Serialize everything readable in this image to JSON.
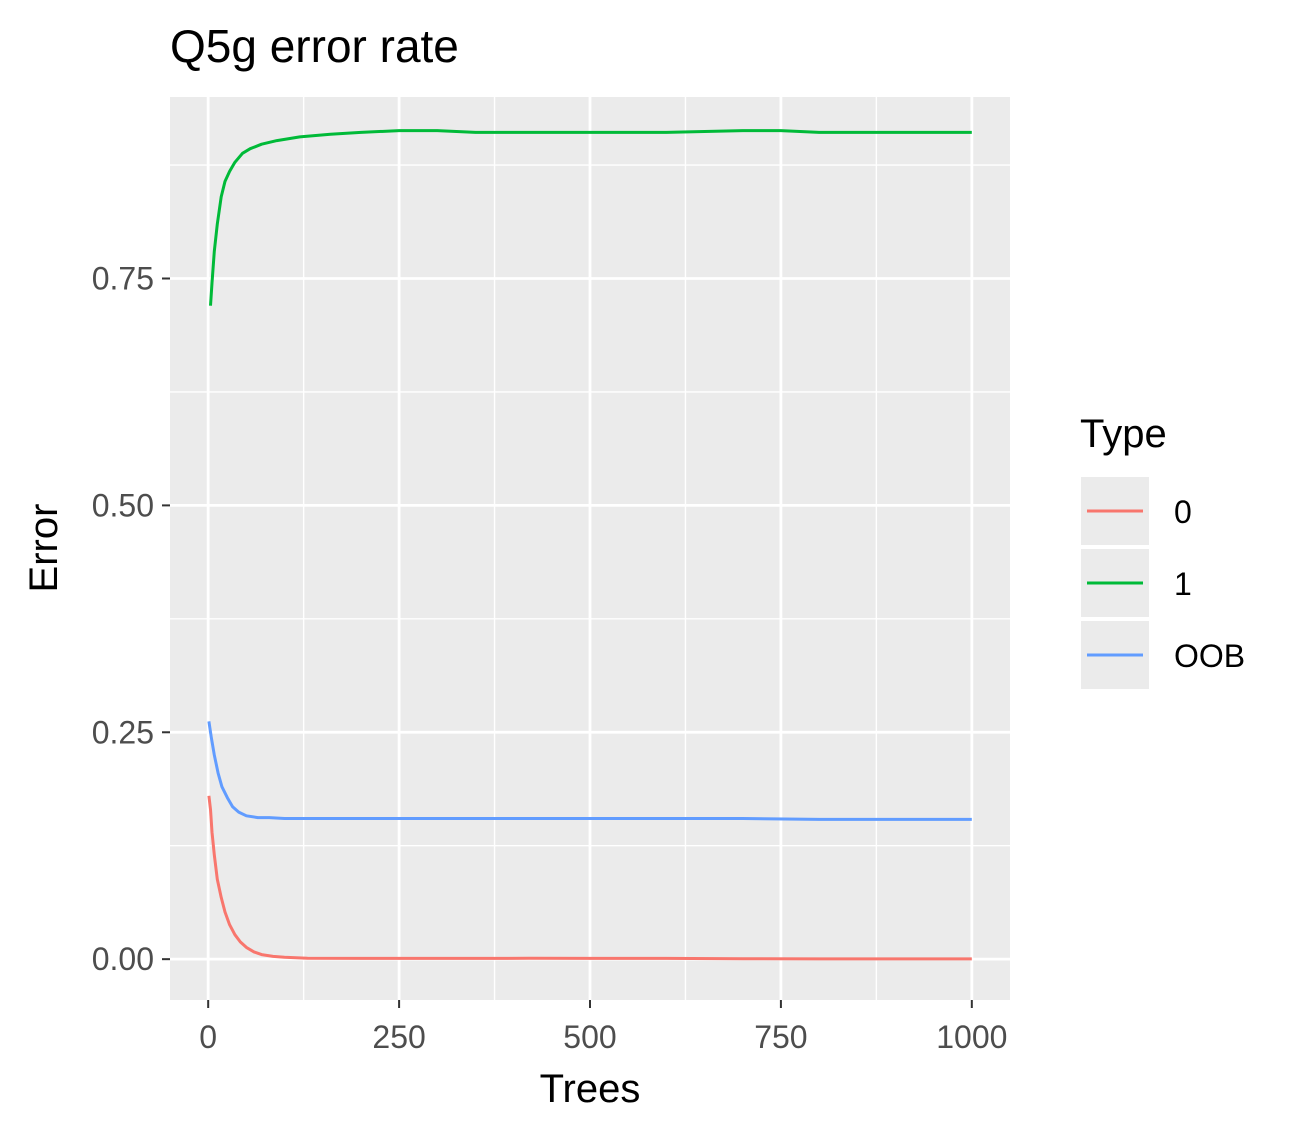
{
  "chart_data": {
    "type": "line",
    "title": "Q5g error rate",
    "xlabel": "Trees",
    "ylabel": "Error",
    "xlim": [
      -50,
      1050
    ],
    "ylim": [
      -0.045,
      0.95
    ],
    "x_ticks": [
      0,
      250,
      500,
      750,
      1000
    ],
    "x_tick_labels": [
      "0",
      "250",
      "500",
      "750",
      "1000"
    ],
    "y_ticks": [
      0.0,
      0.25,
      0.5,
      0.75
    ],
    "y_tick_labels": [
      "0.00",
      "0.25",
      "0.50",
      "0.75"
    ],
    "grid": true,
    "background": "#ebebeb",
    "legend": {
      "title": "Type",
      "position": "right"
    },
    "series": [
      {
        "name": "0",
        "color": "#f8766d",
        "points": [
          [
            1,
            0.18
          ],
          [
            3,
            0.165
          ],
          [
            5,
            0.14
          ],
          [
            8,
            0.115
          ],
          [
            12,
            0.088
          ],
          [
            17,
            0.068
          ],
          [
            22,
            0.052
          ],
          [
            28,
            0.038
          ],
          [
            35,
            0.027
          ],
          [
            42,
            0.019
          ],
          [
            50,
            0.013
          ],
          [
            60,
            0.008
          ],
          [
            70,
            0.005
          ],
          [
            85,
            0.003
          ],
          [
            100,
            0.002
          ],
          [
            130,
            0.001
          ],
          [
            200,
            0.0008
          ],
          [
            300,
            0.0008
          ],
          [
            420,
            0.0009
          ],
          [
            500,
            0.0008
          ],
          [
            600,
            0.0008
          ],
          [
            700,
            0.0005
          ],
          [
            800,
            0.0003
          ],
          [
            900,
            0.0003
          ],
          [
            1000,
            0.0003
          ]
        ]
      },
      {
        "name": "1",
        "color": "#00ba38",
        "points": [
          [
            3,
            0.72
          ],
          [
            5,
            0.745
          ],
          [
            8,
            0.78
          ],
          [
            12,
            0.81
          ],
          [
            17,
            0.84
          ],
          [
            22,
            0.857
          ],
          [
            28,
            0.868
          ],
          [
            35,
            0.878
          ],
          [
            45,
            0.888
          ],
          [
            55,
            0.893
          ],
          [
            70,
            0.898
          ],
          [
            90,
            0.902
          ],
          [
            120,
            0.906
          ],
          [
            160,
            0.909
          ],
          [
            200,
            0.911
          ],
          [
            250,
            0.913
          ],
          [
            300,
            0.913
          ],
          [
            350,
            0.911
          ],
          [
            400,
            0.911
          ],
          [
            500,
            0.911
          ],
          [
            600,
            0.911
          ],
          [
            700,
            0.913
          ],
          [
            750,
            0.913
          ],
          [
            800,
            0.911
          ],
          [
            900,
            0.911
          ],
          [
            1000,
            0.911
          ]
        ]
      },
      {
        "name": "OOB",
        "color": "#619cff",
        "points": [
          [
            1,
            0.262
          ],
          [
            4,
            0.245
          ],
          [
            8,
            0.225
          ],
          [
            13,
            0.205
          ],
          [
            18,
            0.19
          ],
          [
            25,
            0.178
          ],
          [
            32,
            0.168
          ],
          [
            40,
            0.162
          ],
          [
            50,
            0.158
          ],
          [
            65,
            0.156
          ],
          [
            80,
            0.156
          ],
          [
            100,
            0.155
          ],
          [
            150,
            0.155
          ],
          [
            200,
            0.155
          ],
          [
            300,
            0.155
          ],
          [
            400,
            0.155
          ],
          [
            500,
            0.155
          ],
          [
            600,
            0.155
          ],
          [
            700,
            0.155
          ],
          [
            800,
            0.154
          ],
          [
            900,
            0.154
          ],
          [
            1000,
            0.154
          ]
        ]
      }
    ]
  }
}
